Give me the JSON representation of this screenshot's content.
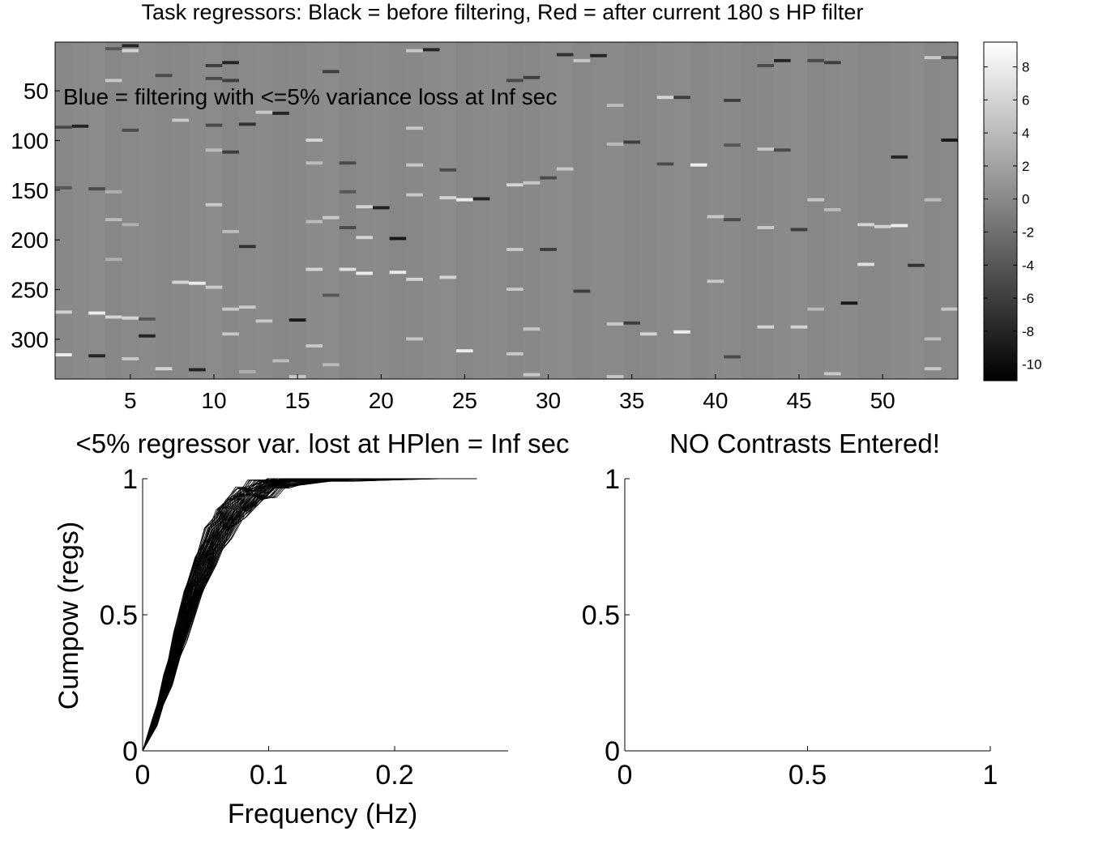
{
  "figure": {
    "top_title": "Task regressors: Black = before filtering, Red = after current 180 s HP filter",
    "overlay_text": "Blue = filtering with <=5% variance loss at Inf sec"
  },
  "chart_data": [
    {
      "type": "heatmap",
      "title": "Task regressors: Black = before filtering, Red = after current 180 s HP filter",
      "annotation": "Blue = filtering with <=5% variance loss at Inf sec",
      "n_columns": 54,
      "n_rows": 340,
      "xlim": [
        0.5,
        54.5
      ],
      "ylim": [
        1,
        340
      ],
      "x_ticks": [
        5,
        10,
        15,
        20,
        25,
        30,
        35,
        40,
        45,
        50
      ],
      "x_tick_labels": [
        "5",
        "10",
        "15",
        "20",
        "25",
        "30",
        "35",
        "40",
        "45",
        "50"
      ],
      "y_ticks": [
        50,
        100,
        150,
        200,
        250,
        300
      ],
      "y_tick_labels": [
        "50",
        "100",
        "150",
        "200",
        "250",
        "300"
      ],
      "colormap": "gray",
      "clim": [
        -11,
        9.5
      ],
      "colorbar_ticks": [
        8,
        6,
        4,
        2,
        0,
        -2,
        -4,
        -6,
        -8,
        -10
      ],
      "colorbar_tick_labels": [
        "8",
        "6",
        "4",
        "2",
        "0",
        "-2",
        "-4",
        "-6",
        "-8",
        "-10"
      ],
      "events": [
        {
          "col": 1,
          "row": 87,
          "val": -5
        },
        {
          "col": 2,
          "row": 86,
          "val": -8
        },
        {
          "col": 1,
          "row": 148,
          "val": -4
        },
        {
          "col": 3,
          "row": 149,
          "val": -5
        },
        {
          "col": 1,
          "row": 273,
          "val": 6
        },
        {
          "col": 3,
          "row": 274,
          "val": 8
        },
        {
          "col": 1,
          "row": 316,
          "val": 8
        },
        {
          "col": 3,
          "row": 317,
          "val": -8
        },
        {
          "col": 4,
          "row": 8,
          "val": -4
        },
        {
          "col": 5,
          "row": 5,
          "val": -8
        },
        {
          "col": 5,
          "row": 10,
          "val": 6
        },
        {
          "col": 4,
          "row": 40,
          "val": 5
        },
        {
          "col": 5,
          "row": 90,
          "val": -5
        },
        {
          "col": 4,
          "row": 152,
          "val": 3
        },
        {
          "col": 4,
          "row": 180,
          "val": 4
        },
        {
          "col": 5,
          "row": 185,
          "val": 3
        },
        {
          "col": 4,
          "row": 220,
          "val": 3
        },
        {
          "col": 4,
          "row": 278,
          "val": 6
        },
        {
          "col": 5,
          "row": 279,
          "val": 6
        },
        {
          "col": 6,
          "row": 297,
          "val": -8
        },
        {
          "col": 5,
          "row": 320,
          "val": 5
        },
        {
          "col": 6,
          "row": 280,
          "val": -4
        },
        {
          "col": 7,
          "row": 35,
          "val": -5
        },
        {
          "col": 8,
          "row": 80,
          "val": 5
        },
        {
          "col": 8,
          "row": 243,
          "val": 6
        },
        {
          "col": 9,
          "row": 244,
          "val": 8
        },
        {
          "col": 7,
          "row": 330,
          "val": 6
        },
        {
          "col": 9,
          "row": 331,
          "val": -8
        },
        {
          "col": 10,
          "row": 25,
          "val": -6
        },
        {
          "col": 11,
          "row": 22,
          "val": -8
        },
        {
          "col": 10,
          "row": 38,
          "val": -5
        },
        {
          "col": 11,
          "row": 40,
          "val": -6
        },
        {
          "col": 10,
          "row": 85,
          "val": -5
        },
        {
          "col": 12,
          "row": 84,
          "val": -7
        },
        {
          "col": 10,
          "row": 110,
          "val": 4
        },
        {
          "col": 11,
          "row": 112,
          "val": -6
        },
        {
          "col": 10,
          "row": 165,
          "val": 5
        },
        {
          "col": 11,
          "row": 192,
          "val": 4
        },
        {
          "col": 12,
          "row": 207,
          "val": -7
        },
        {
          "col": 10,
          "row": 248,
          "val": 5
        },
        {
          "col": 11,
          "row": 270,
          "val": 5
        },
        {
          "col": 12,
          "row": 268,
          "val": 5
        },
        {
          "col": 11,
          "row": 295,
          "val": 5
        },
        {
          "col": 12,
          "row": 333,
          "val": 3
        },
        {
          "col": 13,
          "row": 72,
          "val": 5
        },
        {
          "col": 14,
          "row": 73,
          "val": -8
        },
        {
          "col": 13,
          "row": 282,
          "val": 5
        },
        {
          "col": 15,
          "row": 281,
          "val": -9
        },
        {
          "col": 14,
          "row": 322,
          "val": 4
        },
        {
          "col": 15,
          "row": 338,
          "val": 5
        },
        {
          "col": 16,
          "row": 100,
          "val": 6
        },
        {
          "col": 17,
          "row": 31,
          "val": -6
        },
        {
          "col": 16,
          "row": 123,
          "val": 4
        },
        {
          "col": 18,
          "row": 123,
          "val": -5
        },
        {
          "col": 16,
          "row": 182,
          "val": 4
        },
        {
          "col": 17,
          "row": 178,
          "val": 5
        },
        {
          "col": 16,
          "row": 230,
          "val": 6
        },
        {
          "col": 18,
          "row": 230,
          "val": 7
        },
        {
          "col": 17,
          "row": 256,
          "val": -4
        },
        {
          "col": 16,
          "row": 307,
          "val": 5
        },
        {
          "col": 17,
          "row": 326,
          "val": 4
        },
        {
          "col": 18,
          "row": 152,
          "val": -4
        },
        {
          "col": 18,
          "row": 188,
          "val": -5
        },
        {
          "col": 19,
          "row": 167,
          "val": 6
        },
        {
          "col": 20,
          "row": 168,
          "val": -8
        },
        {
          "col": 19,
          "row": 198,
          "val": 6
        },
        {
          "col": 21,
          "row": 199,
          "val": -9
        },
        {
          "col": 19,
          "row": 234,
          "val": 8
        },
        {
          "col": 21,
          "row": 233,
          "val": 8
        },
        {
          "col": 22,
          "row": 10,
          "val": 5
        },
        {
          "col": 23,
          "row": 9,
          "val": -8
        },
        {
          "col": 22,
          "row": 88,
          "val": 5
        },
        {
          "col": 22,
          "row": 125,
          "val": 5
        },
        {
          "col": 22,
          "row": 155,
          "val": 5
        },
        {
          "col": 24,
          "row": 158,
          "val": 6
        },
        {
          "col": 25,
          "row": 160,
          "val": 8
        },
        {
          "col": 26,
          "row": 159,
          "val": -8
        },
        {
          "col": 22,
          "row": 240,
          "val": 6
        },
        {
          "col": 24,
          "row": 238,
          "val": 6
        },
        {
          "col": 24,
          "row": 130,
          "val": -5
        },
        {
          "col": 25,
          "row": 312,
          "val": 8
        },
        {
          "col": 22,
          "row": 300,
          "val": 5
        },
        {
          "col": 28,
          "row": 40,
          "val": -5
        },
        {
          "col": 29,
          "row": 37,
          "val": -6
        },
        {
          "col": 28,
          "row": 145,
          "val": 6
        },
        {
          "col": 29,
          "row": 143,
          "val": 5
        },
        {
          "col": 28,
          "row": 210,
          "val": 5
        },
        {
          "col": 30,
          "row": 210,
          "val": -6
        },
        {
          "col": 28,
          "row": 250,
          "val": 5
        },
        {
          "col": 29,
          "row": 290,
          "val": 5
        },
        {
          "col": 28,
          "row": 315,
          "val": 5
        },
        {
          "col": 29,
          "row": 336,
          "val": 5
        },
        {
          "col": 30,
          "row": 138,
          "val": -5
        },
        {
          "col": 31,
          "row": 129,
          "val": 5
        },
        {
          "col": 31,
          "row": 14,
          "val": -7
        },
        {
          "col": 32,
          "row": 20,
          "val": 5
        },
        {
          "col": 33,
          "row": 15,
          "val": -8
        },
        {
          "col": 32,
          "row": 252,
          "val": -6
        },
        {
          "col": 34,
          "row": 65,
          "val": 4
        },
        {
          "col": 34,
          "row": 104,
          "val": 4
        },
        {
          "col": 35,
          "row": 102,
          "val": -6
        },
        {
          "col": 34,
          "row": 285,
          "val": 5
        },
        {
          "col": 35,
          "row": 284,
          "val": -6
        },
        {
          "col": 34,
          "row": 338,
          "val": 5
        },
        {
          "col": 37,
          "row": 57,
          "val": 6
        },
        {
          "col": 38,
          "row": 57,
          "val": -6
        },
        {
          "col": 37,
          "row": 124,
          "val": -5
        },
        {
          "col": 39,
          "row": 125,
          "val": 8
        },
        {
          "col": 38,
          "row": 293,
          "val": 8
        },
        {
          "col": 36,
          "row": 295,
          "val": 6
        },
        {
          "col": 41,
          "row": 60,
          "val": -6
        },
        {
          "col": 40,
          "row": 177,
          "val": 5
        },
        {
          "col": 41,
          "row": 180,
          "val": -5
        },
        {
          "col": 41,
          "row": 105,
          "val": -4
        },
        {
          "col": 40,
          "row": 242,
          "val": 5
        },
        {
          "col": 41,
          "row": 318,
          "val": -5
        },
        {
          "col": 43,
          "row": 25,
          "val": -5
        },
        {
          "col": 44,
          "row": 20,
          "val": -8
        },
        {
          "col": 43,
          "row": 109,
          "val": 5
        },
        {
          "col": 44,
          "row": 110,
          "val": -5
        },
        {
          "col": 43,
          "row": 188,
          "val": 5
        },
        {
          "col": 45,
          "row": 190,
          "val": -6
        },
        {
          "col": 43,
          "row": 288,
          "val": 6
        },
        {
          "col": 45,
          "row": 288,
          "val": 6
        },
        {
          "col": 46,
          "row": 20,
          "val": -5
        },
        {
          "col": 47,
          "row": 22,
          "val": -6
        },
        {
          "col": 46,
          "row": 160,
          "val": 5
        },
        {
          "col": 47,
          "row": 170,
          "val": 4
        },
        {
          "col": 48,
          "row": 264,
          "val": -9
        },
        {
          "col": 47,
          "row": 335,
          "val": 5
        },
        {
          "col": 46,
          "row": 270,
          "val": 4
        },
        {
          "col": 49,
          "row": 185,
          "val": 6
        },
        {
          "col": 51,
          "row": 117,
          "val": -8
        },
        {
          "col": 49,
          "row": 225,
          "val": 7
        },
        {
          "col": 52,
          "row": 226,
          "val": -7
        },
        {
          "col": 50,
          "row": 187,
          "val": 6
        },
        {
          "col": 51,
          "row": 186,
          "val": 8
        },
        {
          "col": 53,
          "row": 17,
          "val": 5
        },
        {
          "col": 54,
          "row": 17,
          "val": -5
        },
        {
          "col": 54,
          "row": 100,
          "val": -9
        },
        {
          "col": 53,
          "row": 160,
          "val": 4
        },
        {
          "col": 54,
          "row": 270,
          "val": 5
        },
        {
          "col": 53,
          "row": 300,
          "val": 4
        },
        {
          "col": 53,
          "row": 330,
          "val": 5
        }
      ]
    },
    {
      "type": "line",
      "title": "<5% regressor var. lost at HPlen = Inf sec",
      "xlabel": "Frequency (Hz)",
      "ylabel": "Cumpow (regs)",
      "xlim": [
        0,
        0.29
      ],
      "ylim": [
        0,
        1
      ],
      "x_ticks": [
        0,
        0.1,
        0.2
      ],
      "x_tick_labels": [
        "0",
        "0.1",
        "0.2"
      ],
      "y_ticks": [
        0,
        0.5,
        1
      ],
      "y_tick_labels": [
        "0",
        "0.5",
        "1"
      ],
      "n_series": 54,
      "series_color": "#000000",
      "x": [
        0,
        0.01,
        0.02,
        0.03,
        0.04,
        0.05,
        0.06,
        0.07,
        0.08,
        0.09,
        0.1,
        0.12,
        0.15,
        0.2,
        0.265
      ],
      "series_median": [
        0,
        0.11,
        0.26,
        0.42,
        0.58,
        0.7,
        0.8,
        0.87,
        0.92,
        0.95,
        0.975,
        0.99,
        0.997,
        1.0,
        1.0
      ]
    },
    {
      "type": "line",
      "title": "NO Contrasts Entered!",
      "xlim": [
        0,
        1
      ],
      "ylim": [
        0,
        1
      ],
      "x_ticks": [
        0,
        0.5,
        1
      ],
      "x_tick_labels": [
        "0",
        "0.5",
        "1"
      ],
      "y_ticks": [
        0,
        0.5,
        1
      ],
      "y_tick_labels": [
        "0",
        "0.5",
        "1"
      ],
      "series": []
    }
  ]
}
